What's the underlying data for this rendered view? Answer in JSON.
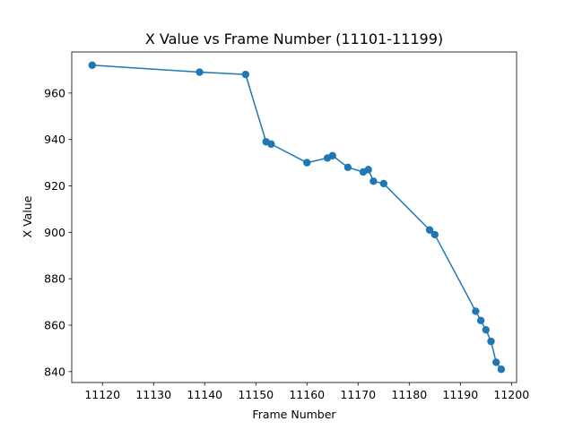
{
  "chart_data": {
    "type": "line",
    "title": "X Value vs Frame Number (11101-11199)",
    "xlabel": "Frame Number",
    "ylabel": "X Value",
    "xlim": [
      11114.0,
      11201.0
    ],
    "ylim": [
      835.3,
      977.7
    ],
    "xticks": [
      11120,
      11130,
      11140,
      11150,
      11160,
      11170,
      11180,
      11190,
      11200
    ],
    "yticks": [
      840,
      860,
      880,
      900,
      920,
      940,
      960
    ],
    "grid": false,
    "legend": "none",
    "series": [
      {
        "color": "#1f77b4",
        "marker": "circle",
        "x": [
          11118,
          11139,
          11148,
          11152,
          11153,
          11160,
          11164,
          11165,
          11168,
          11171,
          11172,
          11173,
          11175,
          11184,
          11185,
          11193,
          11194,
          11195,
          11196,
          11197,
          11198
        ],
        "y": [
          972,
          969,
          968,
          939,
          938,
          930,
          932,
          933,
          928,
          926,
          927,
          922,
          921,
          901,
          899,
          866,
          862,
          858,
          853,
          844,
          841
        ]
      }
    ]
  }
}
